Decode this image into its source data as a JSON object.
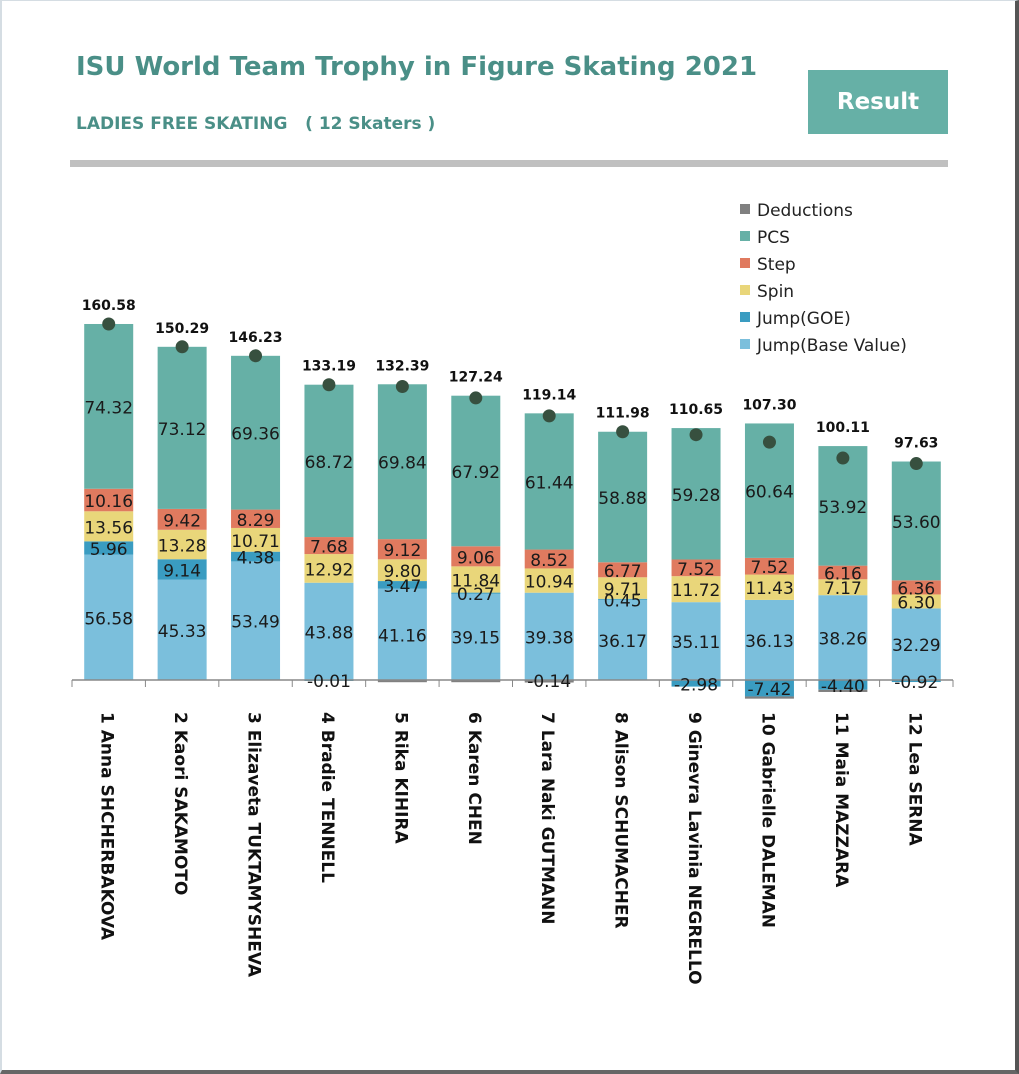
{
  "header": {
    "title": "ISU World Team Trophy in Figure Skating 2021",
    "subtitle": "LADIES FREE SKATING   ( 12 Skaters )",
    "result_button": "Result"
  },
  "colors": {
    "accent": "#4a8f87",
    "button": "#66b0a6",
    "Deductions": "#808080",
    "PCS": "#66b0a6",
    "Step": "#e07a5f",
    "Spin": "#e9d67a",
    "Jump(GOE)": "#3a9cc1",
    "Jump(Base Value)": "#7bbfdc",
    "total_marker": "#37503f"
  },
  "chart_data": {
    "type": "bar",
    "stacked": true,
    "title": "ISU World Team Trophy in Figure Skating 2021",
    "subtitle": "LADIES FREE SKATING ( 12 Skaters )",
    "xlabel": "",
    "ylabel": "",
    "grid": false,
    "legend_position": "top-right",
    "categories": [
      "1  Anna SHCHERBAKOVA",
      "2  Kaori SAKAMOTO",
      "3  Elizaveta TUKTAMYSHEVA",
      "4  Bradie TENNELL",
      "5  Rika KIHIRA",
      "6  Karen CHEN",
      "7  Lara Naki GUTMANN",
      "8  Alison SCHUMACHER",
      "9  Ginevra Lavinia NEGRELLO",
      "10  Gabrielle DALEMAN",
      "11  Maia MAZZARA",
      "12  Lea SERNA"
    ],
    "legend": [
      "Deductions",
      "PCS",
      "Step",
      "Spin",
      "Jump(GOE)",
      "Jump(Base Value)"
    ],
    "series": [
      {
        "name": "Jump(Base Value)",
        "values": [
          56.58,
          45.33,
          53.49,
          43.88,
          41.16,
          39.15,
          39.38,
          36.17,
          35.11,
          36.13,
          38.26,
          32.29
        ]
      },
      {
        "name": "Jump(GOE)",
        "values": [
          5.96,
          9.14,
          4.38,
          -0.01,
          3.47,
          0.27,
          -0.14,
          0.45,
          -2.98,
          -7.42,
          -4.4,
          -0.92
        ]
      },
      {
        "name": "Spin",
        "values": [
          13.56,
          13.28,
          10.71,
          12.92,
          9.8,
          11.84,
          10.94,
          9.71,
          11.72,
          11.43,
          7.17,
          6.3
        ]
      },
      {
        "name": "Step",
        "values": [
          10.16,
          9.42,
          8.29,
          7.68,
          9.12,
          9.06,
          8.52,
          6.77,
          7.52,
          7.52,
          6.16,
          6.36
        ]
      },
      {
        "name": "PCS",
        "values": [
          74.32,
          73.12,
          69.36,
          68.72,
          69.84,
          67.92,
          61.44,
          58.88,
          59.28,
          60.64,
          53.92,
          53.6
        ]
      },
      {
        "name": "Deductions",
        "values": [
          0,
          0,
          0,
          0,
          -1.0,
          -1.0,
          -1.0,
          0,
          0,
          -1.0,
          -1.0,
          0
        ]
      }
    ],
    "totals": [
      160.58,
      150.29,
      146.23,
      133.19,
      132.39,
      127.24,
      119.14,
      111.98,
      110.65,
      107.3,
      100.11,
      97.63
    ],
    "total_labels": [
      "160.58",
      "150.29",
      "146.23",
      "133.19",
      "132.39",
      "127.24",
      "119.14",
      "111.98",
      "110.65",
      "107.30",
      "100.11",
      "97.63"
    ],
    "ylim": [
      -10,
      165
    ]
  }
}
